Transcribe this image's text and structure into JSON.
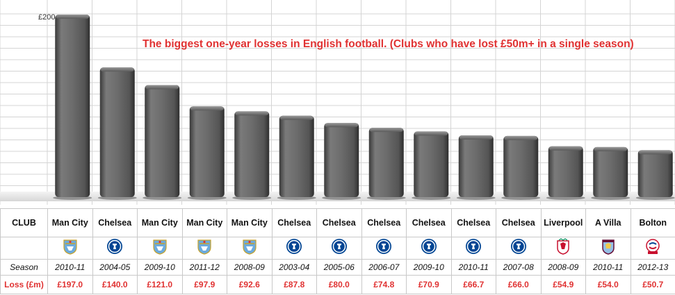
{
  "chart_data": {
    "type": "bar",
    "title": "The biggest one-year losses in English football. (Clubs who have lost £50m+ in a single season)",
    "y_tick_labels": [
      "£200"
    ],
    "ylim": [
      0,
      200
    ],
    "grid": true,
    "categories": [
      "Man City",
      "Chelsea",
      "Man City",
      "Man City",
      "Man City",
      "Chelsea",
      "Chelsea",
      "Chelsea",
      "Chelsea",
      "Chelsea",
      "Chelsea",
      "Liverpool",
      "A Villa",
      "Bolton"
    ],
    "seasons": [
      "2010-11",
      "2004-05",
      "2009-10",
      "2011-12",
      "2008-09",
      "2003-04",
      "2005-06",
      "2006-07",
      "2009-10",
      "2010-11",
      "2007-08",
      "2008-09",
      "2010-11",
      "2012-13"
    ],
    "values": [
      197.0,
      140.0,
      121.0,
      97.9,
      92.6,
      87.8,
      80.0,
      74.8,
      70.9,
      66.7,
      66.0,
      54.9,
      54.0,
      50.7
    ]
  },
  "table": {
    "club_header": "CLUB",
    "season_header": "Season",
    "loss_header": "Loss (£m)",
    "loss_labels": [
      "£197.0",
      "£140.0",
      "£121.0",
      "£97.9",
      "£92.6",
      "£87.8",
      "£80.0",
      "£74.8",
      "£70.9",
      "£66.7",
      "£66.0",
      "£54.9",
      "£54.0",
      "£50.7"
    ],
    "crest_icons": [
      "man-city-crest-icon",
      "chelsea-crest-icon",
      "man-city-crest-icon",
      "man-city-crest-icon",
      "man-city-crest-icon",
      "chelsea-crest-icon",
      "chelsea-crest-icon",
      "chelsea-crest-icon",
      "chelsea-crest-icon",
      "chelsea-crest-icon",
      "chelsea-crest-icon",
      "liverpool-crest-icon",
      "aston-villa-crest-icon",
      "bolton-crest-icon"
    ]
  },
  "colors": {
    "title": "#e03232",
    "loss_text": "#e03232",
    "bar": "#6a6a6a",
    "chelsea_blue": "#034694",
    "man_city_blue": "#6cabdd",
    "liverpool_red": "#c8102e",
    "villa_claret": "#670e36",
    "bolton_red": "#c8102e"
  }
}
